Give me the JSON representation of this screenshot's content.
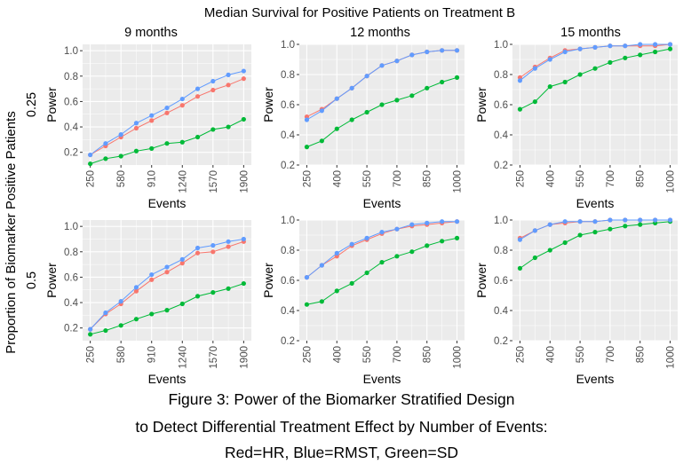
{
  "figure": {
    "title": "Median Survival for Positive Patients on Treatment B",
    "col_headers": [
      "9 months",
      "12 months",
      "15 months"
    ],
    "row_headers": [
      "0.25",
      "0.5"
    ],
    "row_label": "Proportion of Biomarker Positive Patients",
    "caption_lines": [
      "Figure 3: Power of the Biomarker Stratified Design",
      "to Detect Differential Treatment Effect by Number of Events:",
      "Red=HR, Blue=RMST, Green=SD"
    ],
    "colors": {
      "HR": "#F8766D",
      "RMST": "#619CFF",
      "SD": "#00BA38",
      "panel_bg": "#EBEBEB",
      "grid": "#FFFFFF"
    }
  },
  "chart_data": [
    {
      "type": "line",
      "row": "0.25",
      "col": "9 months",
      "xlabel": "Events",
      "ylabel": "Power",
      "xticks": [
        250,
        580,
        910,
        1240,
        1570,
        1900
      ],
      "yticks": [
        0.2,
        0.4,
        0.6,
        0.8,
        1.0
      ],
      "ylim": [
        0.1,
        1.05
      ],
      "x": [
        250,
        415,
        580,
        745,
        910,
        1075,
        1240,
        1405,
        1570,
        1735,
        1900
      ],
      "series": [
        {
          "name": "HR",
          "values": [
            0.18,
            0.25,
            0.32,
            0.39,
            0.45,
            0.51,
            0.57,
            0.64,
            0.69,
            0.73,
            0.78
          ]
        },
        {
          "name": "RMST",
          "values": [
            0.18,
            0.27,
            0.34,
            0.43,
            0.49,
            0.55,
            0.62,
            0.7,
            0.76,
            0.81,
            0.84
          ]
        },
        {
          "name": "SD",
          "values": [
            0.11,
            0.15,
            0.17,
            0.21,
            0.23,
            0.27,
            0.28,
            0.32,
            0.38,
            0.4,
            0.46
          ]
        }
      ]
    },
    {
      "type": "line",
      "row": "0.25",
      "col": "12 months",
      "xlabel": "Events",
      "ylabel": "Power",
      "xticks": [
        250,
        400,
        550,
        700,
        850,
        1000
      ],
      "yticks": [
        0.2,
        0.4,
        0.6,
        0.8,
        1.0
      ],
      "ylim": [
        0.2,
        1.0
      ],
      "x": [
        250,
        325,
        400,
        475,
        550,
        625,
        700,
        775,
        850,
        925,
        1000
      ],
      "series": [
        {
          "name": "HR",
          "values": [
            0.52,
            0.57,
            0.64,
            0.71,
            0.79,
            0.86,
            0.89,
            0.93,
            0.95,
            0.96,
            0.96
          ]
        },
        {
          "name": "RMST",
          "values": [
            0.5,
            0.56,
            0.64,
            0.71,
            0.79,
            0.86,
            0.89,
            0.93,
            0.95,
            0.96,
            0.96
          ]
        },
        {
          "name": "SD",
          "values": [
            0.32,
            0.36,
            0.44,
            0.5,
            0.55,
            0.6,
            0.63,
            0.66,
            0.71,
            0.75,
            0.78
          ]
        }
      ]
    },
    {
      "type": "line",
      "row": "0.25",
      "col": "15 months",
      "xlabel": "Events",
      "ylabel": "Power",
      "xticks": [
        250,
        400,
        550,
        700,
        850,
        1000
      ],
      "yticks": [
        0.2,
        0.4,
        0.6,
        0.8,
        1.0
      ],
      "ylim": [
        0.2,
        1.0
      ],
      "x": [
        250,
        325,
        400,
        475,
        550,
        625,
        700,
        775,
        850,
        925,
        1000
      ],
      "series": [
        {
          "name": "HR",
          "values": [
            0.78,
            0.85,
            0.91,
            0.96,
            0.97,
            0.98,
            0.99,
            0.99,
            0.99,
            0.99,
            1.0
          ]
        },
        {
          "name": "RMST",
          "values": [
            0.76,
            0.84,
            0.9,
            0.95,
            0.97,
            0.98,
            0.99,
            0.99,
            1.0,
            1.0,
            1.0
          ]
        },
        {
          "name": "SD",
          "values": [
            0.57,
            0.62,
            0.72,
            0.75,
            0.8,
            0.84,
            0.88,
            0.91,
            0.93,
            0.95,
            0.97
          ]
        }
      ]
    },
    {
      "type": "line",
      "row": "0.5",
      "col": "9 months",
      "xlabel": "Events",
      "ylabel": "Power",
      "xticks": [
        250,
        580,
        910,
        1240,
        1570,
        1900
      ],
      "yticks": [
        0.2,
        0.4,
        0.6,
        0.8,
        1.0
      ],
      "ylim": [
        0.1,
        1.05
      ],
      "x": [
        250,
        415,
        580,
        745,
        910,
        1075,
        1240,
        1405,
        1570,
        1735,
        1900
      ],
      "series": [
        {
          "name": "HR",
          "values": [
            0.19,
            0.31,
            0.39,
            0.49,
            0.58,
            0.64,
            0.71,
            0.79,
            0.8,
            0.84,
            0.88
          ]
        },
        {
          "name": "RMST",
          "values": [
            0.19,
            0.32,
            0.41,
            0.52,
            0.62,
            0.68,
            0.74,
            0.83,
            0.85,
            0.88,
            0.9
          ]
        },
        {
          "name": "SD",
          "values": [
            0.15,
            0.18,
            0.22,
            0.27,
            0.31,
            0.34,
            0.39,
            0.45,
            0.48,
            0.51,
            0.55
          ]
        }
      ]
    },
    {
      "type": "line",
      "row": "0.5",
      "col": "12 months",
      "xlabel": "Events",
      "ylabel": "Power",
      "xticks": [
        250,
        400,
        550,
        700,
        850,
        1000
      ],
      "yticks": [
        0.2,
        0.4,
        0.6,
        0.8,
        1.0
      ],
      "ylim": [
        0.2,
        1.0
      ],
      "x": [
        250,
        325,
        400,
        475,
        550,
        625,
        700,
        775,
        850,
        925,
        1000
      ],
      "series": [
        {
          "name": "HR",
          "values": [
            0.62,
            0.7,
            0.76,
            0.83,
            0.87,
            0.91,
            0.94,
            0.96,
            0.97,
            0.98,
            0.99
          ]
        },
        {
          "name": "RMST",
          "values": [
            0.62,
            0.7,
            0.78,
            0.84,
            0.88,
            0.92,
            0.94,
            0.97,
            0.98,
            0.99,
            0.99
          ]
        },
        {
          "name": "SD",
          "values": [
            0.44,
            0.46,
            0.53,
            0.58,
            0.65,
            0.72,
            0.76,
            0.79,
            0.83,
            0.86,
            0.88
          ]
        }
      ]
    },
    {
      "type": "line",
      "row": "0.5",
      "col": "15 months",
      "xlabel": "Events",
      "ylabel": "Power",
      "xticks": [
        250,
        400,
        550,
        700,
        850,
        1000
      ],
      "yticks": [
        0.2,
        0.4,
        0.6,
        0.8,
        1.0
      ],
      "ylim": [
        0.2,
        1.0
      ],
      "x": [
        250,
        325,
        400,
        475,
        550,
        625,
        700,
        775,
        850,
        925,
        1000
      ],
      "series": [
        {
          "name": "HR",
          "values": [
            0.88,
            0.93,
            0.97,
            0.98,
            0.99,
            0.99,
            1.0,
            1.0,
            1.0,
            1.0,
            1.0
          ]
        },
        {
          "name": "RMST",
          "values": [
            0.87,
            0.93,
            0.97,
            0.99,
            0.99,
            0.99,
            1.0,
            1.0,
            1.0,
            1.0,
            1.0
          ]
        },
        {
          "name": "SD",
          "values": [
            0.68,
            0.75,
            0.8,
            0.85,
            0.9,
            0.92,
            0.94,
            0.96,
            0.97,
            0.98,
            0.99
          ]
        }
      ]
    }
  ]
}
